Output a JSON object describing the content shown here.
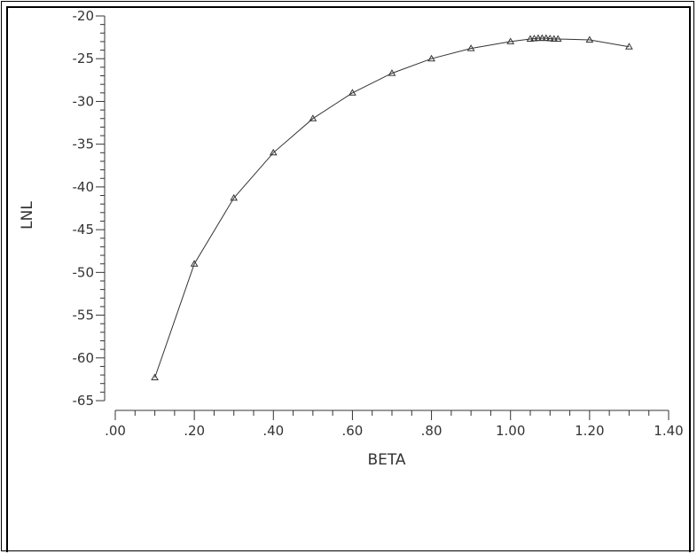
{
  "chart_data": {
    "type": "line",
    "xlabel": "BETA",
    "ylabel": "LNL",
    "xlim": [
      0.0,
      1.4
    ],
    "ylim": [
      -65,
      -20
    ],
    "x_ticks": [
      ".00",
      ".20",
      ".40",
      ".60",
      ".80",
      "1.00",
      "1.20",
      "1.40"
    ],
    "x_tick_values": [
      0.0,
      0.2,
      0.4,
      0.6,
      0.8,
      1.0,
      1.2,
      1.4
    ],
    "y_ticks": [
      "-20",
      "-25",
      "-30",
      "-35",
      "-40",
      "-45",
      "-50",
      "-55",
      "-60",
      "-65"
    ],
    "y_tick_values": [
      -20,
      -25,
      -30,
      -35,
      -40,
      -45,
      -50,
      -55,
      -60,
      -65
    ],
    "grid": false,
    "marker": "triangle",
    "series": [
      {
        "x": [
          0.1,
          0.2,
          0.3,
          0.4,
          0.5,
          0.6,
          0.7,
          0.8,
          0.9,
          1.0,
          1.05,
          1.06,
          1.07,
          1.08,
          1.09,
          1.1,
          1.11,
          1.12,
          1.2,
          1.3
        ],
        "y": [
          -62.3,
          -49.0,
          -41.3,
          -36.0,
          -32.0,
          -29.0,
          -26.7,
          -25.0,
          -23.8,
          -23.0,
          -22.7,
          -22.65,
          -22.6,
          -22.6,
          -22.6,
          -22.65,
          -22.7,
          -22.7,
          -22.8,
          -23.6
        ]
      }
    ]
  }
}
